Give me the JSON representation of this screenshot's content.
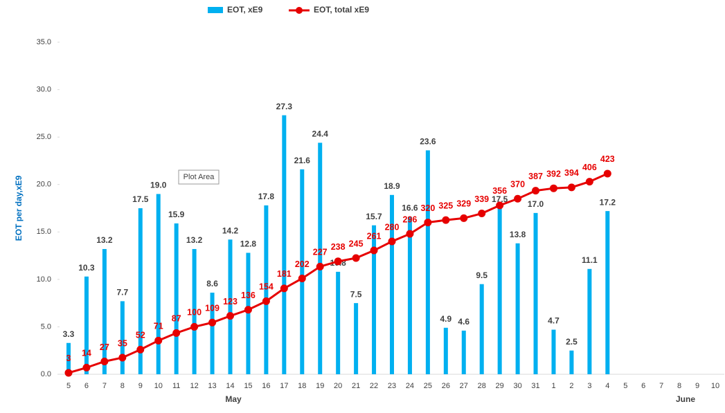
{
  "chart_data": {
    "type": "bar_line",
    "legend_position": "top",
    "y_axis_label": "EOT per day,xE9",
    "tooltip": "Plot Area",
    "categories": [
      "5",
      "6",
      "7",
      "8",
      "9",
      "10",
      "11",
      "12",
      "13",
      "14",
      "15",
      "16",
      "17",
      "18",
      "19",
      "20",
      "21",
      "22",
      "23",
      "24",
      "25",
      "26",
      "27",
      "28",
      "29",
      "30",
      "31",
      "1",
      "2",
      "3",
      "4",
      "5",
      "6",
      "7",
      "8",
      "9",
      "10"
    ],
    "category_groups": [
      "May",
      "June"
    ],
    "ylim": [
      0,
      35
    ],
    "yticks": [
      {
        "value": 0,
        "label": "0.0"
      },
      {
        "value": 5,
        "label": "5.0"
      },
      {
        "value": 10,
        "label": "10.0"
      },
      {
        "value": 15,
        "label": "15.0"
      },
      {
        "value": 20,
        "label": "20.0"
      },
      {
        "value": 25,
        "label": "25.0"
      },
      {
        "value": 30,
        "label": "30.0"
      },
      {
        "value": 35,
        "label": "35.0"
      }
    ],
    "y2lim": [
      0,
      700
    ],
    "grid": false,
    "series": [
      {
        "name": "EOT, xE9",
        "type": "bar",
        "color": "#00b0f0",
        "values": [
          3.3,
          10.3,
          13.2,
          7.7,
          17.5,
          19.0,
          15.9,
          13.2,
          8.6,
          14.2,
          12.8,
          17.8,
          27.3,
          21.6,
          24.4,
          10.8,
          7.5,
          15.7,
          18.9,
          16.6,
          23.6,
          4.9,
          4.6,
          9.5,
          17.5,
          13.8,
          17.0,
          4.7,
          2.5,
          11.1,
          17.2,
          null,
          null,
          null,
          null,
          null,
          null
        ],
        "value_labels": [
          "3.3",
          "10.3",
          "13.2",
          "7.7",
          "17.5",
          "19.0",
          "15.9",
          "13.2",
          "8.6",
          "14.2",
          "12.8",
          "17.8",
          "27.3",
          "21.6",
          "24.4",
          "10.8",
          "7.5",
          "15.7",
          "18.9",
          "16.6",
          "23.6",
          "4.9",
          "4.6",
          "9.5",
          "17.5",
          "13.8",
          "17.0",
          "4.7",
          "2.5",
          "11.1",
          "17.2",
          null,
          null,
          null,
          null,
          null,
          null
        ]
      },
      {
        "name": "EOT, total xE9",
        "type": "line",
        "axis": "y2",
        "color": "#e60000",
        "values": [
          3,
          14,
          27,
          35,
          52,
          71,
          87,
          100,
          109,
          123,
          136,
          154,
          181,
          202,
          227,
          238,
          245,
          261,
          280,
          296,
          320,
          325,
          329,
          339,
          356,
          370,
          387,
          392,
          394,
          406,
          423,
          null,
          null,
          null,
          null,
          null,
          null
        ]
      }
    ]
  }
}
